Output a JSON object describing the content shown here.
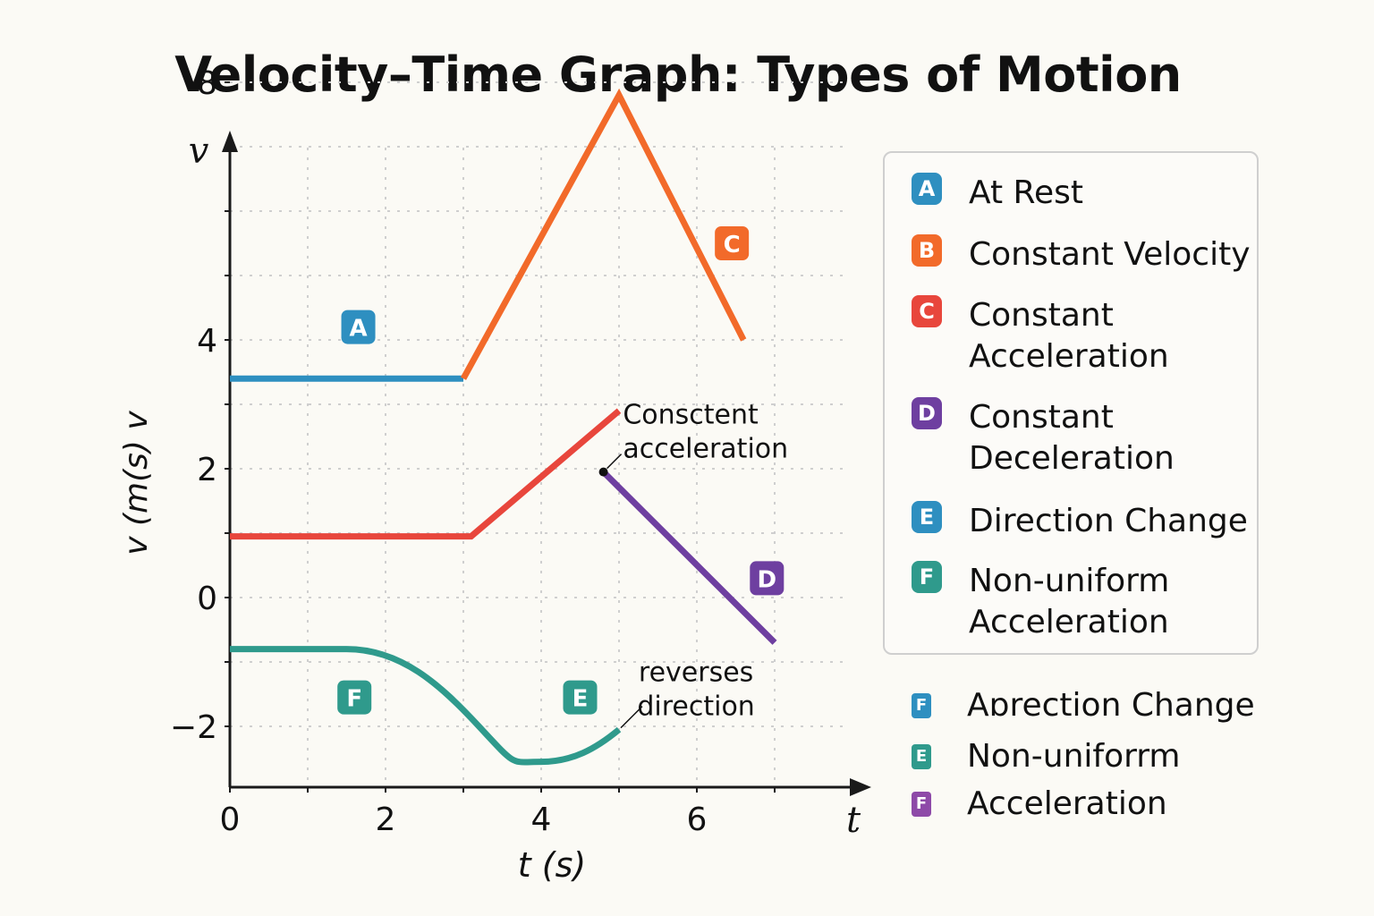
{
  "title": "Velocity–Time Graph: Types of Motion",
  "colors": {
    "background": "#fbfaf5",
    "axis": "#1a1a1a",
    "grid": "#cfcfcf",
    "A": "#2e8fc0",
    "B": "#f26a2a",
    "C": "#e8463c",
    "D": "#6e3fa0",
    "E": "#2f9a8c",
    "F": "#2f9a8c"
  },
  "chart_data": {
    "type": "line",
    "x_axis": {
      "label": "t (s)",
      "end_label": "t",
      "range": [
        0,
        8
      ],
      "ticks": [
        0,
        2,
        4,
        6
      ],
      "tick_labels": [
        "0",
        "2",
        "4",
        "6"
      ]
    },
    "y_axis": {
      "label": "v (m(s) v",
      "end_label": "v",
      "range": [
        -3,
        9
      ],
      "ticks": [
        8,
        4,
        2,
        0,
        -2
      ],
      "tick_labels": [
        "8",
        "4",
        "2",
        "0",
        "−2"
      ]
    },
    "grid": true,
    "series": [
      {
        "key": "A",
        "color": "#2e8fc0",
        "points": [
          [
            0,
            3.4
          ],
          [
            3,
            3.4
          ]
        ]
      },
      {
        "key": "B",
        "color": "#f26a2a",
        "points": [
          [
            3,
            3.4
          ],
          [
            5,
            7.8
          ],
          [
            6.6,
            4.0
          ]
        ]
      },
      {
        "key": "C",
        "color": "#e8463c",
        "points": [
          [
            0,
            0.95
          ],
          [
            3.1,
            0.95
          ],
          [
            5,
            2.9
          ]
        ]
      },
      {
        "key": "D",
        "color": "#6e3fa0",
        "points": [
          [
            4.8,
            1.95
          ],
          [
            7,
            -0.7
          ]
        ]
      },
      {
        "key": "F",
        "color": "#2f9a8c",
        "points": [
          [
            0,
            -0.8
          ],
          [
            1.5,
            -0.8
          ],
          [
            2.5,
            -1.2
          ],
          [
            3.2,
            -2.0
          ],
          [
            4,
            -2.55
          ],
          [
            4.6,
            -2.45
          ],
          [
            5,
            -2.05
          ]
        ]
      }
    ],
    "point_labels": [
      {
        "key": "A",
        "text": "A",
        "x": 1.65,
        "y": 4.2,
        "color": "#2e8fc0"
      },
      {
        "key": "C",
        "text": "C",
        "x": 6.45,
        "y": 5.5,
        "color": "#f26a2a"
      },
      {
        "key": "D",
        "text": "D",
        "x": 6.9,
        "y": 0.3,
        "color": "#6e3fa0"
      },
      {
        "key": "F",
        "text": "F",
        "x": 1.6,
        "y": -1.55,
        "color": "#2f9a8c"
      },
      {
        "key": "E",
        "text": "E",
        "x": 4.5,
        "y": -1.55,
        "color": "#2f9a8c"
      }
    ],
    "annotations": [
      {
        "lines": [
          "Consctent",
          "acceleration"
        ],
        "x": 5.05,
        "y": 2.7,
        "point": [
          4.8,
          1.95
        ]
      },
      {
        "lines": [
          "reverses",
          "direction"
        ],
        "x": 5.3,
        "y": -1.3,
        "point": [
          5,
          -2.05
        ]
      }
    ]
  },
  "legend": {
    "items": [
      {
        "badge": "A",
        "color": "#2e8fc0",
        "text": "At Rest"
      },
      {
        "badge": "B",
        "color": "#f26a2a",
        "text": "Constant Velocity"
      },
      {
        "badge": "C",
        "color": "#e8463c",
        "text": "Constant Acceleration"
      },
      {
        "badge": "D",
        "color": "#6e3fa0",
        "text": "Constant Deceleration"
      },
      {
        "badge": "E",
        "color": "#2e8fc0",
        "text": "Direction Change"
      },
      {
        "badge": "F",
        "color": "#2f9a8c",
        "text": "Non-uniform Acceleration"
      }
    ]
  },
  "extra_legend": [
    {
      "badge": "F",
      "color": "#2e8fc0",
      "text": "Aɒrection Change"
    },
    {
      "badge": "E",
      "color": "#2f9a8c",
      "text": "Non-uniforrm"
    },
    {
      "badge": "F",
      "color": "#8e4aa8",
      "text": "Acceleration"
    }
  ]
}
